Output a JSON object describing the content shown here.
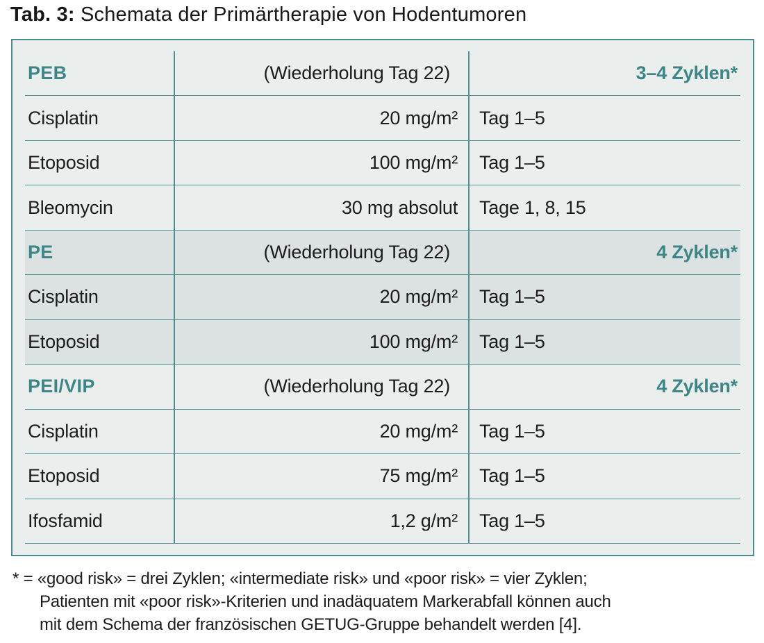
{
  "title": {
    "prefix": "Tab. 3:",
    "text": " Schemata der Primärtherapie von Hodentumoren"
  },
  "colors": {
    "accent_teal": "#3E8587",
    "border_teal": "#4A8C8D",
    "divider_teal": "#4E9091",
    "bg_light": "#EAEFEE",
    "bg_shaded": "#DBE2E1",
    "text": "#1C1C1C"
  },
  "table": {
    "sections": [
      {
        "name": "PEB",
        "repeat": "(Wiederholung Tag 22)",
        "cycles": "3–4 Zyklen*",
        "shaded": false,
        "rows": [
          {
            "drug": "Cisplatin",
            "dose": "20 mg/m²",
            "days": "Tag 1–5"
          },
          {
            "drug": "Etoposid",
            "dose": "100 mg/m²",
            "days": "Tag 1–5"
          },
          {
            "drug": "Bleomycin",
            "dose": "30 mg absolut",
            "days": "Tage 1, 8, 15"
          }
        ]
      },
      {
        "name": "PE",
        "repeat": "(Wiederholung Tag 22)",
        "cycles": "4 Zyklen*",
        "shaded": true,
        "rows": [
          {
            "drug": "Cisplatin",
            "dose": "20 mg/m²",
            "days": "Tag 1–5"
          },
          {
            "drug": "Etoposid",
            "dose": "100 mg/m²",
            "days": "Tag 1–5"
          }
        ]
      },
      {
        "name": "PEI/VIP",
        "repeat": "(Wiederholung Tag 22)",
        "cycles": "4 Zyklen*",
        "shaded": false,
        "rows": [
          {
            "drug": "Cisplatin",
            "dose": "20 mg/m²",
            "days": "Tag 1–5"
          },
          {
            "drug": "Etoposid",
            "dose": "75 mg/m²",
            "days": "Tag 1–5"
          },
          {
            "drug": "Ifosfamid",
            "dose": "1,2 g/m²",
            "days": "Tag 1–5"
          }
        ]
      }
    ]
  },
  "footnote": {
    "line1": "* = «good risk» = drei Zyklen; «intermediate risk» und «poor risk» = vier Zyklen;",
    "line2": "Patienten mit «poor risk»-Kriterien und inadäquatem Markerabfall können auch",
    "line3": "mit dem Schema der französischen GETUG-Gruppe behandelt werden [4]."
  }
}
